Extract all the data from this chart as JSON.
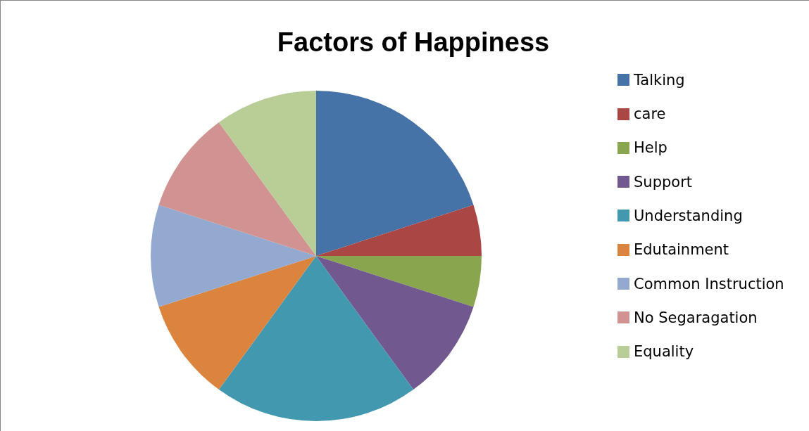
{
  "chart_data": {
    "type": "pie",
    "title": "Factors of Happiness",
    "categories": [
      "Talking",
      "care",
      "Help",
      "Support",
      "Understanding",
      "Edutainment",
      "Common Instruction",
      "No Segaragation",
      "Equality"
    ],
    "values": [
      20,
      5,
      5,
      10,
      20,
      10,
      10,
      10,
      10
    ],
    "colors": [
      "#4572a7",
      "#aa4643",
      "#89a54e",
      "#71588f",
      "#4198af",
      "#db843d",
      "#93a9cf",
      "#d19392",
      "#b9cd96"
    ],
    "legend": "right"
  }
}
